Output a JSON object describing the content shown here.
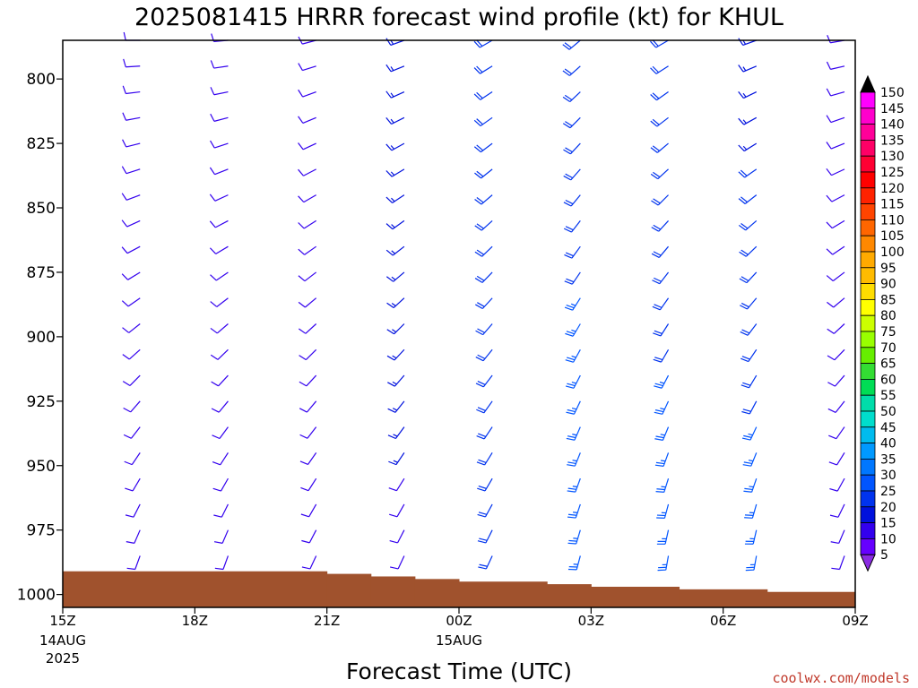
{
  "chart_data": {
    "type": "wind-barb time-height profile",
    "title": "2025081415 HRRR forecast wind profile (kt) for KHUL",
    "xlabel": "Forecast Time (UTC)",
    "ylabel": "",
    "y_axis": {
      "unit": "hPa",
      "range": [
        1005,
        785
      ],
      "inverted": true,
      "ticks": [
        800,
        825,
        850,
        875,
        900,
        925,
        950,
        975,
        1000
      ]
    },
    "x_axis": {
      "range_hours": [
        0,
        18
      ],
      "ticks": [
        {
          "hour": 0,
          "label": "15Z",
          "sub1": "14AUG",
          "sub2": "2025"
        },
        {
          "hour": 3,
          "label": "18Z",
          "sub1": "",
          "sub2": ""
        },
        {
          "hour": 6,
          "label": "21Z",
          "sub1": "",
          "sub2": ""
        },
        {
          "hour": 9,
          "label": "00Z",
          "sub1": "15AUG",
          "sub2": ""
        },
        {
          "hour": 12,
          "label": "03Z",
          "sub1": "",
          "sub2": ""
        },
        {
          "hour": 15,
          "label": "06Z",
          "sub1": "",
          "sub2": ""
        },
        {
          "hour": 18,
          "label": "09Z",
          "sub1": "",
          "sub2": ""
        }
      ]
    },
    "profile_levels_hPa": [
      785,
      795,
      805,
      815,
      825,
      835,
      845,
      855,
      865,
      875,
      885,
      895,
      905,
      915,
      925,
      935,
      945,
      955,
      965,
      975,
      985
    ],
    "barb_columns": [
      {
        "hour": 2,
        "surface_hPa": 990,
        "dir_bottom": 200,
        "dir_top": 270,
        "spd_bottom": 10,
        "spd_top": 10
      },
      {
        "hour": 4,
        "surface_hPa": 990,
        "dir_bottom": 200,
        "dir_top": 265,
        "spd_bottom": 10,
        "spd_top": 10
      },
      {
        "hour": 6,
        "surface_hPa": 990,
        "dir_bottom": 205,
        "dir_top": 255,
        "spd_bottom": 10,
        "spd_top": 10
      },
      {
        "hour": 8,
        "surface_hPa": 990,
        "dir_bottom": 205,
        "dir_top": 250,
        "spd_bottom": 12,
        "spd_top": 15
      },
      {
        "hour": 10,
        "surface_hPa": 990,
        "dir_bottom": 205,
        "dir_top": 240,
        "spd_bottom": 20,
        "spd_top": 18
      },
      {
        "hour": 12,
        "surface_hPa": 995,
        "dir_bottom": 195,
        "dir_top": 230,
        "spd_bottom": 25,
        "spd_top": 20
      },
      {
        "hour": 14,
        "surface_hPa": 995,
        "dir_bottom": 190,
        "dir_top": 240,
        "spd_bottom": 25,
        "spd_top": 18
      },
      {
        "hour": 16,
        "surface_hPa": 995,
        "dir_bottom": 190,
        "dir_top": 250,
        "spd_bottom": 25,
        "spd_top": 15
      },
      {
        "hour": 18,
        "surface_hPa": 995,
        "dir_bottom": 200,
        "dir_top": 260,
        "spd_bottom": 12,
        "spd_top": 10
      }
    ],
    "terrain_steps": [
      {
        "from_hour": 0,
        "to_hour": 6,
        "surface_hPa": 991
      },
      {
        "from_hour": 6,
        "to_hour": 7,
        "surface_hPa": 992
      },
      {
        "from_hour": 7,
        "to_hour": 8,
        "surface_hPa": 993
      },
      {
        "from_hour": 8,
        "to_hour": 9,
        "surface_hPa": 994
      },
      {
        "from_hour": 9,
        "to_hour": 11,
        "surface_hPa": 995
      },
      {
        "from_hour": 11,
        "to_hour": 12,
        "surface_hPa": 996
      },
      {
        "from_hour": 12,
        "to_hour": 14,
        "surface_hPa": 997
      },
      {
        "from_hour": 14,
        "to_hour": 16,
        "surface_hPa": 998
      },
      {
        "from_hour": 16,
        "to_hour": 18,
        "surface_hPa": 999
      }
    ],
    "terrain_color": "#a0522d",
    "colorbar": {
      "labels": [
        150,
        145,
        140,
        135,
        130,
        125,
        120,
        115,
        110,
        105,
        100,
        95,
        90,
        85,
        80,
        75,
        70,
        65,
        60,
        55,
        50,
        45,
        40,
        35,
        30,
        25,
        20,
        15,
        10,
        5
      ],
      "segment_colors": [
        "#ff00ff",
        "#ff00cc",
        "#ff0099",
        "#ff0066",
        "#ff0033",
        "#ff0000",
        "#ff2200",
        "#ff4400",
        "#ff6600",
        "#ff8800",
        "#ffaa00",
        "#ffbb00",
        "#ffdd00",
        "#ffff00",
        "#ccff00",
        "#99ff00",
        "#66ee00",
        "#33dd33",
        "#00dd55",
        "#00ddaa",
        "#00ddcc",
        "#00bbee",
        "#0099ff",
        "#0077ff",
        "#0055ff",
        "#0033ee",
        "#0011dd",
        "#3300ee",
        "#6600ff"
      ],
      "top_triangle_color": "#000000",
      "bottom_triangle_color": "#8a2be2"
    }
  },
  "credit": "coolwx.com/models"
}
